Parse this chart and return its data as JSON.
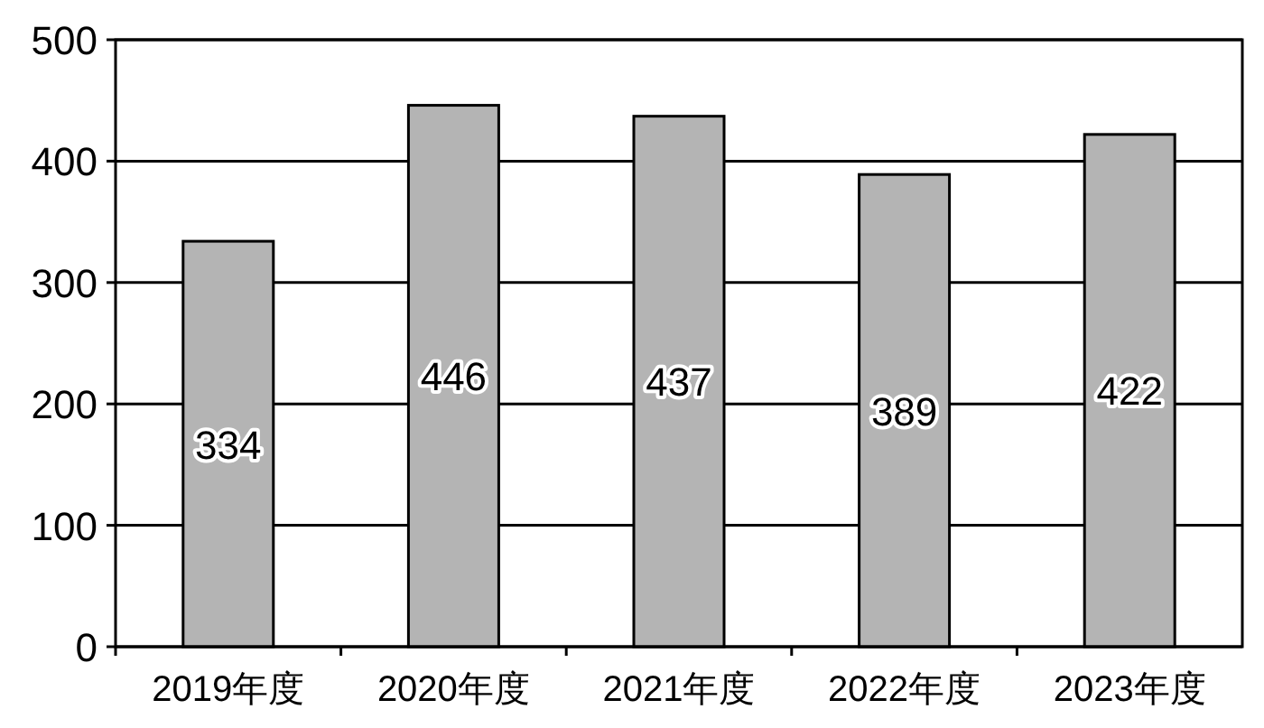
{
  "chart_data": {
    "type": "bar",
    "categories": [
      "2019年度",
      "2020年度",
      "2021年度",
      "2022年度",
      "2023年度"
    ],
    "values": [
      334,
      446,
      437,
      389,
      422
    ],
    "color": "#b4b4b4",
    "ylim": [
      0,
      500
    ],
    "yticks": [
      0,
      100,
      200,
      300,
      400,
      500
    ],
    "grid": "y",
    "data_labels": true
  }
}
